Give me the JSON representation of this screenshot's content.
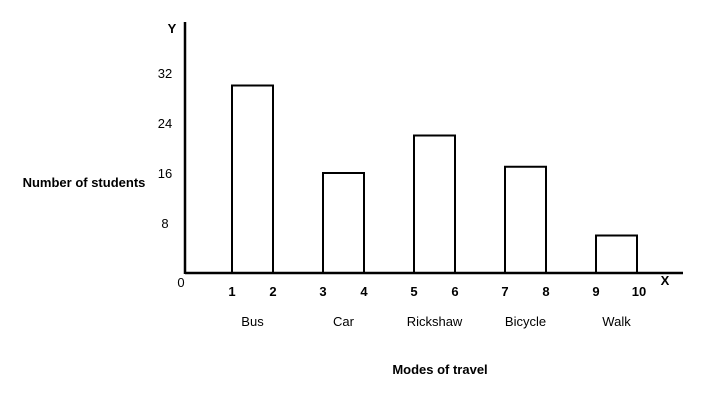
{
  "chart_data": {
    "type": "bar",
    "title": "",
    "xlabel": "Modes of travel",
    "ylabel": "Number of students",
    "x_axis_letter": "X",
    "y_axis_letter": "Y",
    "origin_label": "0",
    "categories": [
      "Bus",
      "Car",
      "Rickshaw",
      "Bicycle",
      "Walk"
    ],
    "values": [
      30,
      16,
      22,
      17,
      6
    ],
    "y_ticks": [
      8,
      16,
      24,
      32
    ],
    "x_ticks": [
      "1",
      "2",
      "3",
      "4",
      "5",
      "6",
      "7",
      "8",
      "9",
      "10"
    ],
    "bar_spans": [
      [
        1,
        2
      ],
      [
        3,
        4
      ],
      [
        5,
        6
      ],
      [
        7,
        8
      ],
      [
        9,
        10
      ]
    ],
    "ylim": [
      0,
      40
    ],
    "grid": false,
    "legend": "none",
    "colors": {
      "bar_fill": "#ffffff",
      "bar_stroke": "#000000",
      "axis": "#000000"
    }
  }
}
